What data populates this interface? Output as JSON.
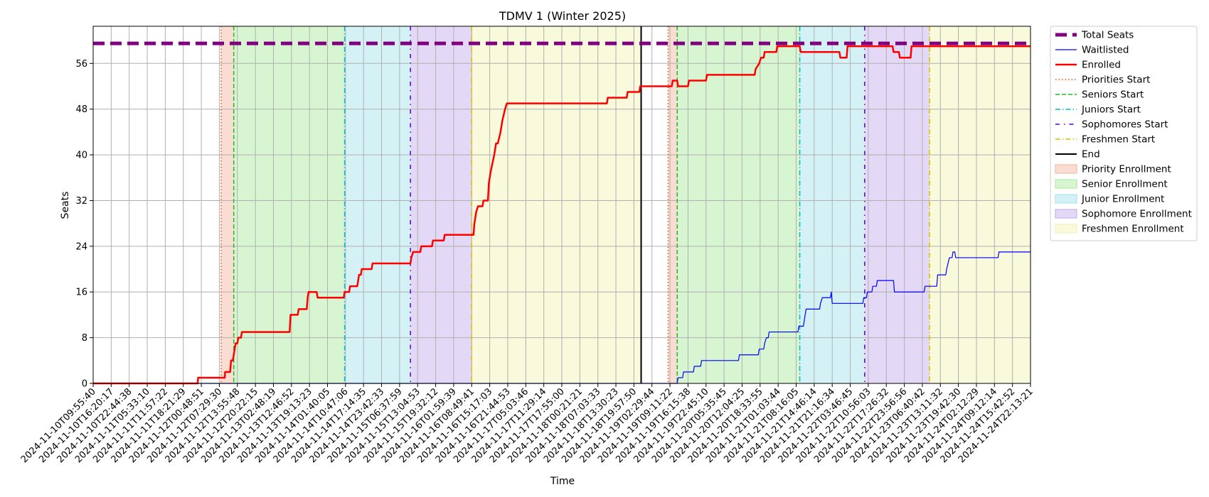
{
  "chart_data": {
    "type": "line",
    "title": "TDMV 1 (Winter 2025)",
    "xlabel": "Time",
    "ylabel": "Seats",
    "ylim": [
      0,
      62.5
    ],
    "yticks": [
      0,
      8,
      16,
      24,
      32,
      40,
      48,
      56
    ],
    "grid": true,
    "legend_position": "outside-right",
    "x_tick_labels": [
      "2024-11-10T09:55:40",
      "2024-11-10T16:20:17",
      "2024-11-10T22:44:38",
      "2024-11-11T05:33:10",
      "2024-11-11T11:57:22",
      "2024-11-11T18:21:29",
      "2024-11-12T00:48:51",
      "2024-11-12T07:29:30",
      "2024-11-12T13:55:48",
      "2024-11-12T20:22:15",
      "2024-11-13T02:48:19",
      "2024-11-13T12:46:52",
      "2024-11-13T19:13:23",
      "2024-11-14T01:40:05",
      "2024-11-14T10:47:06",
      "2024-11-14T17:14:35",
      "2024-11-14T23:42:33",
      "2024-11-15T06:37:59",
      "2024-11-15T13:04:53",
      "2024-11-15T19:32:12",
      "2024-11-16T01:59:39",
      "2024-11-16T08:49:41",
      "2024-11-16T15:17:03",
      "2024-11-16T21:44:53",
      "2024-11-17T05:03:46",
      "2024-11-17T11:29:14",
      "2024-11-17T17:55:00",
      "2024-11-18T00:21:21",
      "2024-11-18T07:03:33",
      "2024-11-18T13:30:23",
      "2024-11-18T19:57:50",
      "2024-11-19T02:29:44",
      "2024-11-19T09:11:22",
      "2024-11-19T16:15:38",
      "2024-11-19T22:45:10",
      "2024-11-20T05:35:45",
      "2024-11-20T12:04:25",
      "2024-11-20T18:33:55",
      "2024-11-21T01:03:44",
      "2024-11-21T08:16:05",
      "2024-11-21T14:46:14",
      "2024-11-21T21:16:34",
      "2024-11-22T03:46:45",
      "2024-11-22T10:56:03",
      "2024-11-22T17:26:32",
      "2024-11-22T23:56:56",
      "2024-11-23T06:40:42",
      "2024-11-23T13:11:32",
      "2024-11-23T19:42:30",
      "2024-11-24T02:12:29",
      "2024-11-24T09:12:14",
      "2024-11-24T15:42:52",
      "2024-11-24T22:13:21"
    ],
    "total_seats": 59.5,
    "series": [
      {
        "name": "Total Seats",
        "color": "#800080",
        "style": "dashed-thick",
        "points": [
          [
            0,
            59.5
          ],
          [
            52,
            59.5
          ]
        ]
      },
      {
        "name": "Waitlisted",
        "color": "#0000ff",
        "style": "solid-thin",
        "points": [
          [
            0,
            0
          ],
          [
            32.4,
            0
          ],
          [
            32.45,
            1
          ],
          [
            32.7,
            1
          ],
          [
            32.75,
            2
          ],
          [
            33.3,
            2
          ],
          [
            33.35,
            3
          ],
          [
            33.7,
            3
          ],
          [
            33.75,
            4
          ],
          [
            35.8,
            4
          ],
          [
            35.85,
            5
          ],
          [
            36.9,
            5
          ],
          [
            36.95,
            6
          ],
          [
            37.2,
            6
          ],
          [
            37.25,
            7
          ],
          [
            37.35,
            8
          ],
          [
            37.45,
            8
          ],
          [
            37.5,
            9
          ],
          [
            39.1,
            9
          ],
          [
            39.15,
            10
          ],
          [
            39.4,
            10
          ],
          [
            39.45,
            11
          ],
          [
            39.5,
            12
          ],
          [
            39.55,
            13
          ],
          [
            40.3,
            13
          ],
          [
            40.35,
            14
          ],
          [
            40.45,
            15
          ],
          [
            40.9,
            15
          ],
          [
            40.95,
            16
          ],
          [
            41.0,
            14
          ],
          [
            42.7,
            14
          ],
          [
            42.75,
            15
          ],
          [
            42.9,
            15
          ],
          [
            42.95,
            16
          ],
          [
            43.2,
            16
          ],
          [
            43.25,
            17
          ],
          [
            43.45,
            17
          ],
          [
            43.5,
            18
          ],
          [
            44.4,
            18
          ],
          [
            44.45,
            16
          ],
          [
            46.1,
            16
          ],
          [
            46.15,
            17
          ],
          [
            46.8,
            17
          ],
          [
            46.85,
            19
          ],
          [
            47.3,
            19
          ],
          [
            47.35,
            20
          ],
          [
            47.5,
            22
          ],
          [
            47.65,
            22
          ],
          [
            47.7,
            23
          ],
          [
            47.8,
            23
          ],
          [
            47.85,
            22
          ],
          [
            50.2,
            22
          ],
          [
            50.25,
            23
          ],
          [
            52,
            23
          ]
        ]
      },
      {
        "name": "Enrolled",
        "color": "#ff0000",
        "style": "solid-thick",
        "points": [
          [
            0,
            0
          ],
          [
            5.8,
            0
          ],
          [
            5.82,
            1
          ],
          [
            7.3,
            1
          ],
          [
            7.32,
            2
          ],
          [
            7.6,
            2
          ],
          [
            7.65,
            4
          ],
          [
            7.75,
            4
          ],
          [
            7.8,
            5
          ],
          [
            7.9,
            7
          ],
          [
            8.0,
            7
          ],
          [
            8.05,
            8
          ],
          [
            8.2,
            8
          ],
          [
            8.25,
            9
          ],
          [
            10.9,
            9
          ],
          [
            10.95,
            12
          ],
          [
            11.35,
            12
          ],
          [
            11.4,
            13
          ],
          [
            11.85,
            13
          ],
          [
            11.9,
            15
          ],
          [
            11.95,
            16
          ],
          [
            12.4,
            16
          ],
          [
            12.45,
            15
          ],
          [
            13.9,
            15
          ],
          [
            13.95,
            16
          ],
          [
            14.2,
            16
          ],
          [
            14.25,
            17
          ],
          [
            14.65,
            17
          ],
          [
            14.7,
            18
          ],
          [
            14.75,
            19
          ],
          [
            14.85,
            19
          ],
          [
            14.9,
            20
          ],
          [
            15.45,
            20
          ],
          [
            15.5,
            21
          ],
          [
            17.6,
            21
          ],
          [
            17.65,
            22
          ],
          [
            17.75,
            23
          ],
          [
            18.15,
            23
          ],
          [
            18.2,
            24
          ],
          [
            18.8,
            24
          ],
          [
            18.85,
            25
          ],
          [
            19.45,
            25
          ],
          [
            19.5,
            26
          ],
          [
            21.1,
            26
          ],
          [
            21.15,
            28
          ],
          [
            21.25,
            30
          ],
          [
            21.35,
            31
          ],
          [
            21.6,
            31
          ],
          [
            21.65,
            32
          ],
          [
            21.9,
            32
          ],
          [
            21.95,
            35
          ],
          [
            22.05,
            37
          ],
          [
            22.25,
            40
          ],
          [
            22.35,
            42
          ],
          [
            22.45,
            42
          ],
          [
            22.6,
            44
          ],
          [
            22.7,
            46
          ],
          [
            22.85,
            48
          ],
          [
            22.95,
            49
          ],
          [
            28.5,
            49
          ],
          [
            28.55,
            50
          ],
          [
            29.6,
            50
          ],
          [
            29.65,
            51
          ],
          [
            30.3,
            51
          ],
          [
            30.35,
            52
          ],
          [
            32.1,
            52
          ],
          [
            32.15,
            53
          ],
          [
            32.4,
            53
          ],
          [
            32.45,
            52
          ],
          [
            33.0,
            52
          ],
          [
            33.05,
            53
          ],
          [
            34.0,
            53
          ],
          [
            34.05,
            54
          ],
          [
            36.7,
            54
          ],
          [
            36.75,
            55
          ],
          [
            36.95,
            56
          ],
          [
            37.05,
            57
          ],
          [
            37.2,
            57
          ],
          [
            37.25,
            58
          ],
          [
            37.9,
            58
          ],
          [
            37.95,
            59
          ],
          [
            39.2,
            59
          ],
          [
            39.25,
            58
          ],
          [
            41.4,
            58
          ],
          [
            41.45,
            57
          ],
          [
            41.8,
            57
          ],
          [
            41.85,
            59
          ],
          [
            44.35,
            59
          ],
          [
            44.4,
            58
          ],
          [
            44.7,
            58
          ],
          [
            44.75,
            57
          ],
          [
            45.35,
            57
          ],
          [
            45.4,
            59
          ],
          [
            52,
            59
          ]
        ]
      }
    ],
    "markers": [
      {
        "name": "Priorities Start",
        "x": 7.1,
        "color": "#ff4500",
        "style": "dotted"
      },
      {
        "name": "Seniors Start",
        "x": 7.8,
        "color": "#22bb22",
        "style": "dashed"
      },
      {
        "name": "Juniors Start",
        "x": 13.95,
        "color": "#00bbcc",
        "style": "dashdot"
      },
      {
        "name": "Sophomores Start",
        "x": 17.6,
        "color": "#5500cc",
        "style": "loosely-dashdot"
      },
      {
        "name": "Freshmen Start",
        "x": 21.0,
        "color": "#d4c000",
        "style": "dashdot"
      },
      {
        "name": "End",
        "x": 30.4,
        "color": "#000000",
        "style": "solid"
      },
      {
        "name": "Priorities Start",
        "x": 31.9,
        "color": "#ff4500",
        "style": "dotted"
      },
      {
        "name": "Seniors Start",
        "x": 32.4,
        "color": "#22bb22",
        "style": "dashed"
      },
      {
        "name": "Juniors Start",
        "x": 39.2,
        "color": "#00bbcc",
        "style": "dashdot"
      },
      {
        "name": "Sophomores Start",
        "x": 42.8,
        "color": "#5500cc",
        "style": "loosely-dashdot"
      },
      {
        "name": "Freshmen Start",
        "x": 46.4,
        "color": "#d4c000",
        "style": "dashdot"
      }
    ],
    "bands": [
      {
        "name": "Priority Enrollment",
        "from": 7.1,
        "to": 7.8,
        "color": "#f4b49b"
      },
      {
        "name": "Senior Enrollment",
        "from": 7.8,
        "to": 13.95,
        "color": "#a8e89c"
      },
      {
        "name": "Junior Enrollment",
        "from": 13.95,
        "to": 17.6,
        "color": "#9fe3ea"
      },
      {
        "name": "Sophomore Enrollment",
        "from": 17.6,
        "to": 21.0,
        "color": "#c0a8ea"
      },
      {
        "name": "Freshmen Enrollment",
        "from": 21.0,
        "to": 30.4,
        "color": "#f1f1b0"
      },
      {
        "name": "Priority Enrollment",
        "from": 31.9,
        "to": 32.4,
        "color": "#f4b49b"
      },
      {
        "name": "Senior Enrollment",
        "from": 32.4,
        "to": 39.2,
        "color": "#a8e89c"
      },
      {
        "name": "Junior Enrollment",
        "from": 39.2,
        "to": 42.8,
        "color": "#9fe3ea"
      },
      {
        "name": "Sophomore Enrollment",
        "from": 42.8,
        "to": 46.4,
        "color": "#c0a8ea"
      },
      {
        "name": "Freshmen Enrollment",
        "from": 46.4,
        "to": 52,
        "color": "#f1f1b0"
      }
    ],
    "legend": [
      {
        "label": "Total Seats",
        "kind": "line",
        "color": "#800080",
        "style": "dashed-thick"
      },
      {
        "label": "Waitlisted",
        "kind": "line",
        "color": "#0000ff",
        "style": "solid-thin"
      },
      {
        "label": "Enrolled",
        "kind": "line",
        "color": "#ff0000",
        "style": "solid-thick"
      },
      {
        "label": "Priorities Start",
        "kind": "line",
        "color": "#ff4500",
        "style": "dotted"
      },
      {
        "label": "Seniors Start",
        "kind": "line",
        "color": "#22bb22",
        "style": "dashed"
      },
      {
        "label": "Juniors Start",
        "kind": "line",
        "color": "#00bbcc",
        "style": "dashdot"
      },
      {
        "label": "Sophomores Start",
        "kind": "line",
        "color": "#5500cc",
        "style": "loosely-dashdot"
      },
      {
        "label": "Freshmen Start",
        "kind": "line",
        "color": "#d4c000",
        "style": "dashdot"
      },
      {
        "label": "End",
        "kind": "line",
        "color": "#000000",
        "style": "solid"
      },
      {
        "label": "Priority Enrollment",
        "kind": "patch",
        "color": "#f4b49b"
      },
      {
        "label": "Senior Enrollment",
        "kind": "patch",
        "color": "#a8e89c"
      },
      {
        "label": "Junior Enrollment",
        "kind": "patch",
        "color": "#9fe3ea"
      },
      {
        "label": "Sophomore Enrollment",
        "kind": "patch",
        "color": "#c0a8ea"
      },
      {
        "label": "Freshmen Enrollment",
        "kind": "patch",
        "color": "#f1f1b0"
      }
    ]
  }
}
